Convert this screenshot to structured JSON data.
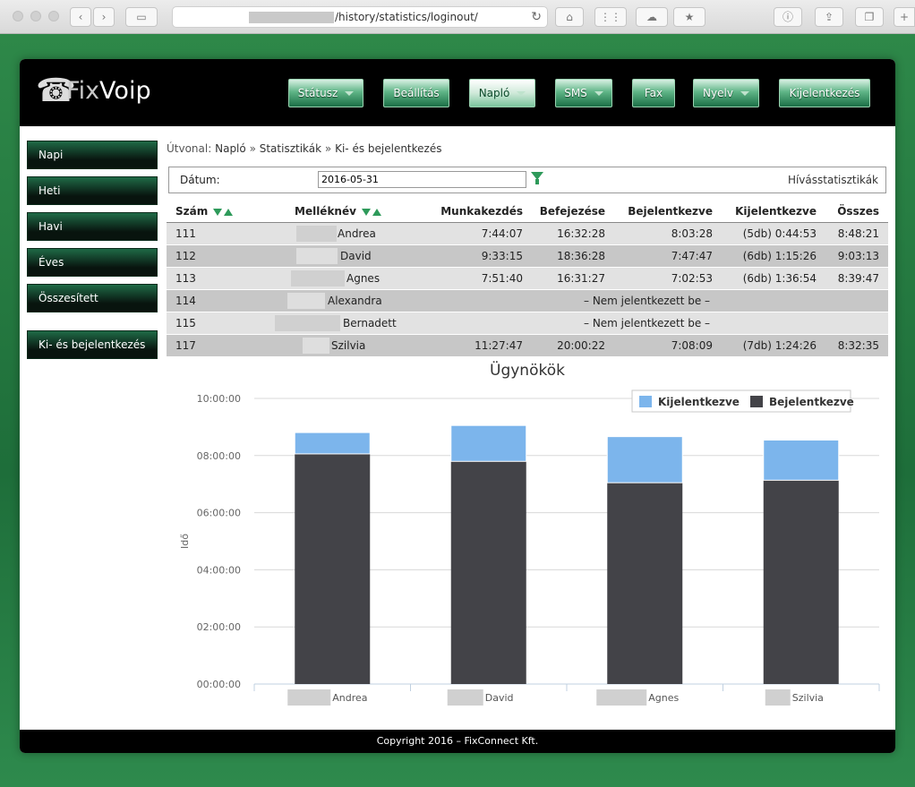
{
  "browser": {
    "url_path": "/history/statistics/loginout/"
  },
  "app": {
    "logo_prefix": "Fix",
    "logo_suffix": "Voip",
    "footer": "Copyright 2016 – FixConnect Kft."
  },
  "nav": [
    {
      "label": "Státusz",
      "dropdown": true
    },
    {
      "label": "Beállítás",
      "dropdown": false
    },
    {
      "label": "Napló",
      "dropdown": true,
      "active": true
    },
    {
      "label": "SMS",
      "dropdown": true
    },
    {
      "label": "Fax",
      "dropdown": false
    },
    {
      "label": "Nyelv",
      "dropdown": true
    },
    {
      "label": "Kijelentkezés",
      "dropdown": false
    }
  ],
  "sidebar": {
    "items": [
      "Napi",
      "Heti",
      "Havi",
      "Éves",
      "Összesített"
    ],
    "special": "Ki- és bejelentkezés"
  },
  "breadcrumb": {
    "prefix": "Útvonal:",
    "items": [
      "Napló",
      "Statisztikák",
      "Ki- és bejelentkezés"
    ],
    "sep": "»"
  },
  "filter": {
    "label": "Dátum:",
    "date_value": "2016-05-31",
    "stats_link": "Hívásstatisztikák"
  },
  "table": {
    "headers": [
      "Szám",
      "Melléknév",
      "Munkakezdés",
      "Befejezése",
      "Bejelentkezve",
      "Kijelentkezve",
      "Összes"
    ],
    "not_logged_in": "– Nem jelentkezett be –",
    "rows": [
      {
        "num": "111",
        "name": "Andrea",
        "start": "7:44:07",
        "end": "16:32:28",
        "in": "8:03:28",
        "out": "(5db) 0:44:53",
        "total": "8:48:21"
      },
      {
        "num": "112",
        "name": "David",
        "start": "9:33:15",
        "end": "18:36:28",
        "in": "7:47:47",
        "out": "(6db) 1:15:26",
        "total": "9:03:13"
      },
      {
        "num": "113",
        "name": "Agnes",
        "start": "7:51:40",
        "end": "16:31:27",
        "in": "7:02:53",
        "out": "(6db) 1:36:54",
        "total": "8:39:47"
      },
      {
        "num": "114",
        "name": "Alexandra",
        "not_logged": true
      },
      {
        "num": "115",
        "name": "Bernadett",
        "not_logged": true
      },
      {
        "num": "117",
        "name": "Szilvia",
        "start": "11:27:47",
        "end": "20:00:22",
        "in": "7:08:09",
        "out": "(7db) 1:24:26",
        "total": "8:32:35"
      }
    ]
  },
  "chart_data": {
    "type": "bar",
    "stacked": true,
    "title": "Ügynökök",
    "ylabel": "Idő",
    "xlabel": "",
    "categories": [
      "Andrea",
      "David",
      "Agnes",
      "Szilvia"
    ],
    "series": [
      {
        "name": "Bejelentkezve",
        "color": "#434348",
        "values": [
          "8:03:28",
          "7:47:47",
          "7:02:53",
          "7:08:09"
        ]
      },
      {
        "name": "Kijelentkezve",
        "color": "#7cb5ec",
        "values": [
          "0:44:53",
          "1:15:26",
          "1:36:54",
          "1:24:26"
        ]
      }
    ],
    "legend": [
      "Kijelentkezve",
      "Bejelentkezve"
    ],
    "yticks": [
      "00:00:00",
      "02:00:00",
      "04:00:00",
      "06:00:00",
      "08:00:00",
      "10:00:00"
    ],
    "ylim_hours": [
      0,
      10
    ],
    "grid": true,
    "legend_position": "top-right"
  }
}
